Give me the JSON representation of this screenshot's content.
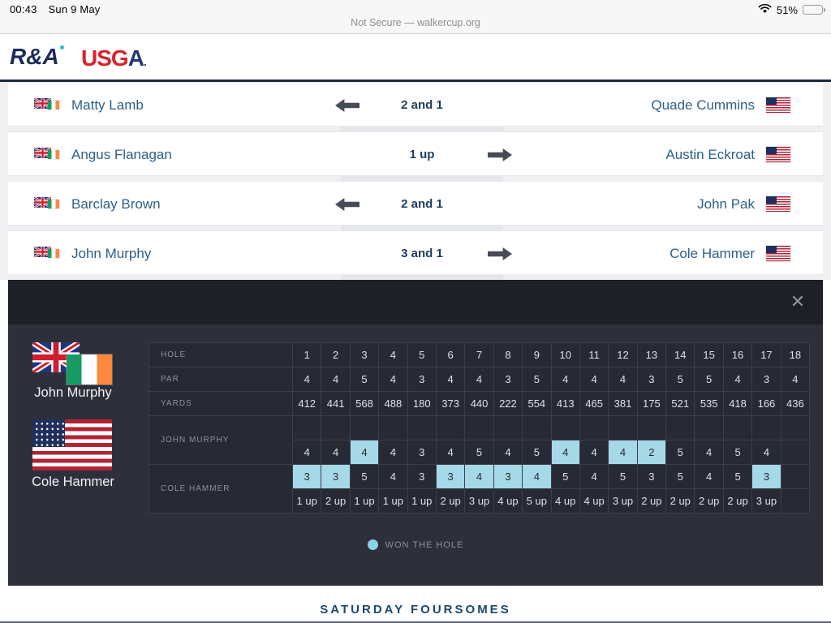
{
  "status_bar": {
    "time": "00:43",
    "date": "Sun 9 May",
    "url": "Not Secure — walkercup.org",
    "battery_percent": "51%"
  },
  "header": {
    "randa_text": "R&A",
    "usga_red": "USG",
    "usga_blue": "A",
    "usga_dot": "."
  },
  "matches": [
    {
      "gbi_player": "Matty Lamb",
      "usa_player": "Quade Cummins",
      "score": "2 and 1",
      "winner": "gbi"
    },
    {
      "gbi_player": "Angus Flanagan",
      "usa_player": "Austin Eckroat",
      "score": "1 up",
      "winner": "usa"
    },
    {
      "gbi_player": "Barclay Brown",
      "usa_player": "John Pak",
      "score": "2 and 1",
      "winner": "gbi"
    },
    {
      "gbi_player": "John Murphy",
      "usa_player": "Cole Hammer",
      "score": "3 and 1",
      "winner": "usa"
    }
  ],
  "scorecard": {
    "player1": "John Murphy",
    "player2": "Cole Hammer",
    "close_glyph": "✕",
    "row_labels": {
      "hole": "HOLE",
      "par": "PAR",
      "yards": "YARDS",
      "p1": "JOHN MURPHY",
      "p2": "COLE HAMMER"
    },
    "holes": [
      1,
      2,
      3,
      4,
      5,
      6,
      7,
      8,
      9,
      10,
      11,
      12,
      13,
      14,
      15,
      16,
      17,
      18
    ],
    "par": [
      4,
      4,
      5,
      4,
      3,
      4,
      4,
      3,
      5,
      4,
      4,
      4,
      3,
      5,
      5,
      4,
      3,
      4
    ],
    "yards": [
      412,
      441,
      568,
      488,
      180,
      373,
      440,
      222,
      554,
      413,
      465,
      381,
      175,
      521,
      535,
      418,
      166,
      436
    ],
    "p1_scores": [
      4,
      4,
      4,
      4,
      3,
      4,
      5,
      4,
      5,
      4,
      4,
      4,
      2,
      5,
      4,
      5,
      4,
      null
    ],
    "p1_won_holes": [
      3,
      10,
      12,
      13
    ],
    "p2_scores": [
      3,
      3,
      5,
      4,
      3,
      3,
      4,
      3,
      4,
      5,
      4,
      5,
      3,
      5,
      4,
      5,
      3,
      null
    ],
    "p2_won_holes": [
      1,
      2,
      6,
      7,
      8,
      9,
      17
    ],
    "status": [
      "1 up",
      "2 up",
      "1 up",
      "1 up",
      "1 up",
      "2 up",
      "3 up",
      "4 up",
      "5 up",
      "4 up",
      "4 up",
      "3 up",
      "2 up",
      "2 up",
      "2 up",
      "2 up",
      "3 up",
      ""
    ],
    "legend": "WON THE HOLE"
  },
  "footer": {
    "title": "SATURDAY FOURSOMES"
  },
  "colors": {
    "won_highlight": "#a5d9e8",
    "panel_body": "#2d303b",
    "panel_header": "#1d2027",
    "accent_navy": "#1a4971",
    "usga_red": "#d8232a",
    "player_link_blue": "#2d5f8a"
  }
}
